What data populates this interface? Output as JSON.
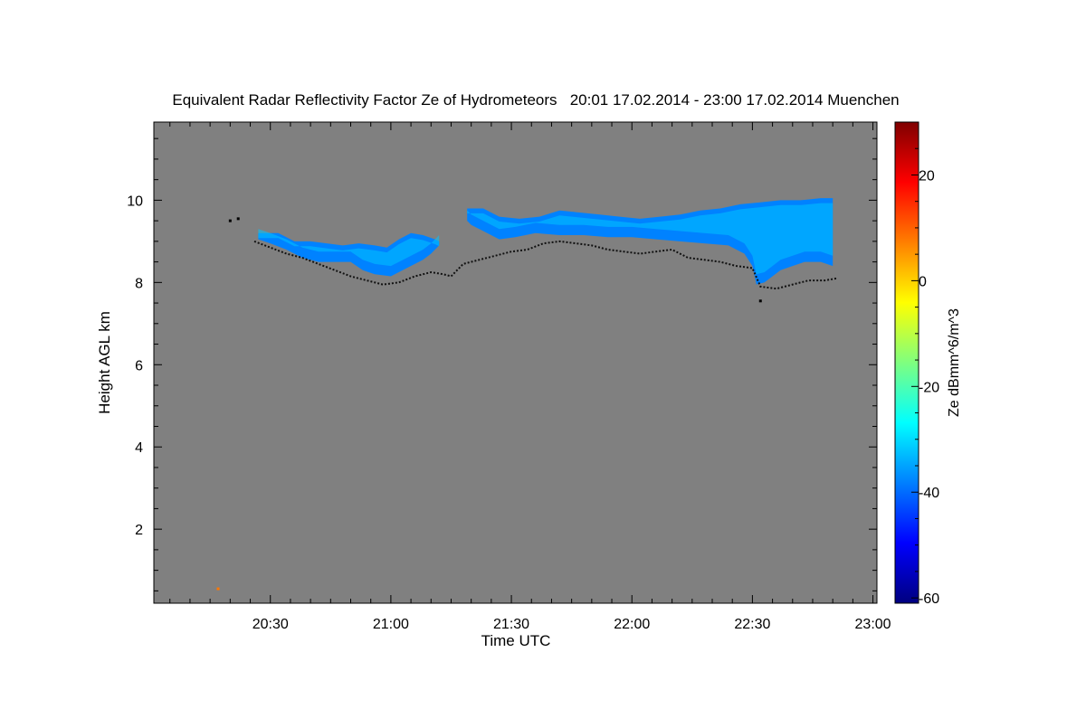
{
  "chart_data": {
    "type": "heatmap",
    "title": "Equivalent Radar Reflectivity Factor Ze of Hydrometeors   20:01 17.02.2014 - 23:00 17.02.2014 Muenchen",
    "xlabel": "Time UTC",
    "ylabel": "Height AGL km",
    "colorbar_label": "Ze dBmm^6/m^3",
    "x_range_min": [
      1201,
      1381
    ],
    "y_range_km": [
      0.2,
      11.9
    ],
    "colorbar_range_dbz": [
      -61,
      30
    ],
    "x_ticks": [
      {
        "min": 1230,
        "label": "20:30"
      },
      {
        "min": 1260,
        "label": "21:00"
      },
      {
        "min": 1290,
        "label": "21:30"
      },
      {
        "min": 1320,
        "label": "22:00"
      },
      {
        "min": 1350,
        "label": "22:30"
      },
      {
        "min": 1380,
        "label": "23:00"
      }
    ],
    "y_ticks": [
      {
        "km": 2,
        "label": "2"
      },
      {
        "km": 4,
        "label": "4"
      },
      {
        "km": 6,
        "label": "6"
      },
      {
        "km": 8,
        "label": "8"
      },
      {
        "km": 10,
        "label": "10"
      }
    ],
    "colorbar_ticks": [
      {
        "dbz": 20,
        "label": "20"
      },
      {
        "dbz": 0,
        "label": "0"
      },
      {
        "dbz": -20,
        "label": "-20"
      },
      {
        "dbz": -40,
        "label": "-40"
      },
      {
        "dbz": -60,
        "label": "-60"
      }
    ],
    "background_color": "#808080",
    "colormap": [
      "#00007f",
      "#0000ff",
      "#007fff",
      "#00ffff",
      "#7fff7f",
      "#ffff00",
      "#ff7f00",
      "#ff0000",
      "#7f0000"
    ],
    "echo_layers": [
      {
        "name": "cloud-layer-1",
        "top": [
          [
            1227,
            9.2
          ],
          [
            1232,
            9.2
          ],
          [
            1236,
            9.0
          ],
          [
            1240,
            9.0
          ],
          [
            1244,
            8.95
          ],
          [
            1248,
            8.9
          ],
          [
            1252,
            8.95
          ],
          [
            1256,
            8.9
          ],
          [
            1259,
            8.85
          ],
          [
            1262,
            9.05
          ],
          [
            1265,
            9.2
          ],
          [
            1268,
            9.15
          ],
          [
            1271,
            9.05
          ],
          [
            1272,
            9.0
          ]
        ],
        "bottom": [
          [
            1272,
            8.9
          ],
          [
            1270,
            8.7
          ],
          [
            1268,
            8.55
          ],
          [
            1264,
            8.35
          ],
          [
            1260,
            8.15
          ],
          [
            1256,
            8.2
          ],
          [
            1253,
            8.3
          ],
          [
            1250,
            8.5
          ],
          [
            1246,
            8.5
          ],
          [
            1242,
            8.5
          ],
          [
            1238,
            8.6
          ],
          [
            1234,
            8.8
          ],
          [
            1230,
            8.95
          ],
          [
            1227,
            9.05
          ]
        ],
        "mean_dbz": -38
      },
      {
        "name": "cloud-layer-2",
        "top": [
          [
            1279,
            9.8
          ],
          [
            1283,
            9.8
          ],
          [
            1287,
            9.6
          ],
          [
            1292,
            9.55
          ],
          [
            1297,
            9.6
          ],
          [
            1302,
            9.75
          ],
          [
            1307,
            9.7
          ],
          [
            1312,
            9.65
          ],
          [
            1317,
            9.6
          ],
          [
            1322,
            9.55
          ],
          [
            1327,
            9.6
          ],
          [
            1332,
            9.65
          ],
          [
            1337,
            9.75
          ],
          [
            1342,
            9.8
          ],
          [
            1347,
            9.9
          ],
          [
            1352,
            9.95
          ],
          [
            1357,
            10.0
          ],
          [
            1362,
            10.0
          ],
          [
            1367,
            10.05
          ],
          [
            1370,
            10.05
          ]
        ],
        "bottom": [
          [
            1370,
            8.4
          ],
          [
            1367,
            8.5
          ],
          [
            1363,
            8.5
          ],
          [
            1360,
            8.4
          ],
          [
            1357,
            8.3
          ],
          [
            1355,
            8.15
          ],
          [
            1353,
            8.0
          ],
          [
            1351,
            7.95
          ],
          [
            1350,
            8.4
          ],
          [
            1348,
            8.7
          ],
          [
            1344,
            8.9
          ],
          [
            1338,
            8.95
          ],
          [
            1332,
            9.0
          ],
          [
            1326,
            9.05
          ],
          [
            1320,
            9.1
          ],
          [
            1314,
            9.1
          ],
          [
            1308,
            9.15
          ],
          [
            1302,
            9.15
          ],
          [
            1296,
            9.2
          ],
          [
            1291,
            9.1
          ],
          [
            1287,
            9.05
          ],
          [
            1283,
            9.25
          ],
          [
            1280,
            9.4
          ],
          [
            1279,
            9.5
          ]
        ],
        "mean_dbz": -38
      }
    ],
    "cloud_base_line": [
      [
        1226,
        9.0
      ],
      [
        1230,
        8.85
      ],
      [
        1234,
        8.7
      ],
      [
        1238,
        8.6
      ],
      [
        1242,
        8.45
      ],
      [
        1246,
        8.3
      ],
      [
        1250,
        8.15
      ],
      [
        1254,
        8.05
      ],
      [
        1258,
        7.95
      ],
      [
        1262,
        8.0
      ],
      [
        1266,
        8.15
      ],
      [
        1270,
        8.25
      ],
      [
        1273,
        8.2
      ],
      [
        1275,
        8.15
      ],
      [
        1278,
        8.45
      ],
      [
        1282,
        8.55
      ],
      [
        1286,
        8.65
      ],
      [
        1290,
        8.75
      ],
      [
        1294,
        8.8
      ],
      [
        1298,
        8.95
      ],
      [
        1302,
        9.0
      ],
      [
        1306,
        8.95
      ],
      [
        1310,
        8.9
      ],
      [
        1314,
        8.8
      ],
      [
        1318,
        8.75
      ],
      [
        1322,
        8.7
      ],
      [
        1326,
        8.75
      ],
      [
        1330,
        8.8
      ],
      [
        1334,
        8.6
      ],
      [
        1338,
        8.55
      ],
      [
        1342,
        8.5
      ],
      [
        1346,
        8.4
      ],
      [
        1350,
        8.35
      ],
      [
        1352,
        7.9
      ],
      [
        1356,
        7.85
      ],
      [
        1360,
        7.95
      ],
      [
        1364,
        8.05
      ],
      [
        1368,
        8.05
      ],
      [
        1371,
        8.1
      ]
    ],
    "isolated_points": [
      {
        "min": 1220,
        "km": 9.5,
        "dbz": -70
      },
      {
        "min": 1222,
        "km": 9.55,
        "dbz": -70
      },
      {
        "min": 1352,
        "km": 7.55,
        "dbz": -70
      },
      {
        "min": 1217,
        "km": 0.55,
        "dbz": 8
      }
    ]
  }
}
